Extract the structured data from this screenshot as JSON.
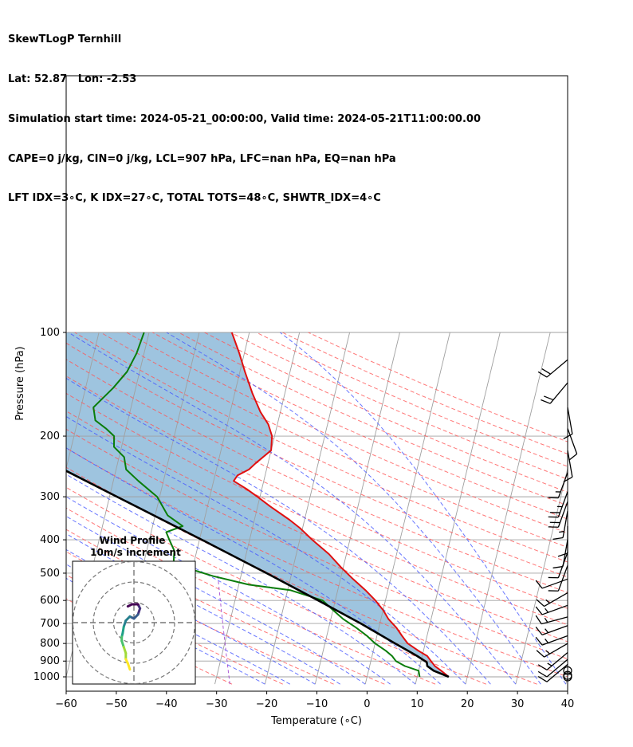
{
  "header": {
    "line1": "SkewTLogP Ternhill",
    "line2": "Lat: 52.87   Lon: -2.53",
    "line3": "Simulation start time: 2024-05-21_00:00:00, Valid time: 2024-05-21T11:00:00.00",
    "line4": "CAPE=0 j/kg, CIN=0 j/kg, LCL=907 hPa, LFC=nan hPa, EQ=nan hPa",
    "line5": "LFT IDX=3∘C, K IDX=27∘C, TOTAL TOTS=48∘C, SHWTR_IDX=4∘C"
  },
  "chart_data": {
    "type": "skew-t",
    "xlabel": "Temperature (∘C)",
    "ylabel": "Pressure (hPa)",
    "xlim": [
      -60,
      40
    ],
    "ylim": [
      1050,
      100
    ],
    "y_scale": "log",
    "x_ticks": [
      -60,
      -50,
      -40,
      -30,
      -20,
      -10,
      0,
      10,
      20,
      30,
      40
    ],
    "y_ticks": [
      100,
      200,
      300,
      400,
      500,
      600,
      700,
      800,
      900,
      1000
    ],
    "grid": true,
    "colors": {
      "temperature": "#e01010",
      "dewpoint": "#0a7d0a",
      "parcel": "#000000",
      "cape_fill": "#7eb0d4",
      "dry_adiabats": "#ff5555",
      "moist_adiabats": "#4455ff",
      "mixing_ratio": "#9933cc",
      "isotherms": "#a0a0a0"
    },
    "temperature": {
      "pressure": [
        1000,
        960,
        930,
        900,
        870,
        840,
        800,
        760,
        720,
        680,
        640,
        600,
        560,
        520,
        480,
        440,
        400,
        370,
        350,
        320,
        300,
        285,
        270,
        260,
        250,
        240,
        220,
        200,
        185,
        170,
        150,
        130,
        115,
        100
      ],
      "temp": [
        16.3,
        14.5,
        13.0,
        12.0,
        11.0,
        9.0,
        6.5,
        5.0,
        3.5,
        1.5,
        0.0,
        -2.0,
        -4.5,
        -7.5,
        -10.5,
        -13.5,
        -17.5,
        -20.5,
        -23.0,
        -27.5,
        -30.5,
        -33.0,
        -36.0,
        -35.5,
        -33.5,
        -32.5,
        -30.0,
        -30.5,
        -31.8,
        -34.0,
        -36.5,
        -39.0,
        -41.0,
        -43.5
      ]
    },
    "dewpoint": {
      "pressure": [
        1000,
        960,
        930,
        900,
        870,
        840,
        800,
        760,
        720,
        680,
        640,
        600,
        560,
        540,
        510,
        470,
        430,
        400,
        380,
        365,
        340,
        300,
        270,
        250,
        230,
        215,
        200,
        190,
        180,
        165,
        145,
        130,
        115,
        100
      ],
      "dewp": [
        10.5,
        10.0,
        7.0,
        5.0,
        4.0,
        2.5,
        0.0,
        -2.0,
        -4.5,
        -7.5,
        -10.0,
        -12.5,
        -19.5,
        -28.0,
        -35.5,
        -44.0,
        -44.5,
        -46.0,
        -47.0,
        -44.0,
        -47.5,
        -50.5,
        -55.0,
        -58.0,
        -59.0,
        -61.5,
        -62.0,
        -64.0,
        -66.5,
        -67.5,
        -64.5,
        -62.5,
        -61.5,
        -61.0
      ]
    },
    "parcel": {
      "pressure": [
        1000,
        960,
        930,
        907,
        870,
        800,
        700,
        600,
        500,
        400,
        300,
        250,
        200,
        150,
        100
      ],
      "temp": [
        16.3,
        13.0,
        11.5,
        11.2,
        9.0,
        4.0,
        -3.8,
        -13.4,
        -25.0,
        -39.5,
        -58.5,
        -70.5,
        -83.5,
        -95.5,
        -107.0
      ]
    },
    "wind_barbs": {
      "pressure": [
        1000,
        990,
        960,
        920,
        890,
        850,
        800,
        760,
        710,
        670,
        620,
        570,
        520,
        475,
        435,
        400,
        365,
        330,
        310,
        290,
        255,
        220,
        190,
        165,
        140,
        120
      ],
      "speed_kt": [
        0,
        0,
        0,
        12,
        13,
        15,
        17,
        17,
        15,
        17,
        15,
        15,
        10,
        10,
        10,
        10,
        10,
        15,
        20,
        25,
        15,
        10,
        10,
        10,
        20,
        20
      ],
      "direction_deg": [
        0,
        0,
        0,
        230,
        230,
        230,
        240,
        250,
        250,
        255,
        250,
        240,
        250,
        200,
        200,
        190,
        180,
        190,
        200,
        200,
        200,
        170,
        160,
        170,
        220,
        230
      ]
    },
    "hodograph": {
      "title": "Wind Profile",
      "subtitle": "10m/s increment",
      "u": [
        -3,
        -1,
        2,
        2.5,
        3,
        2,
        0,
        -2,
        -4,
        -5,
        -5.5,
        -6,
        -6,
        -5,
        -4,
        -4,
        -3,
        -2
      ],
      "v": [
        -8,
        -9,
        -9,
        -8,
        -7,
        -4,
        -2,
        -3,
        -1,
        2,
        5,
        7,
        9,
        12,
        15,
        18,
        20,
        23
      ],
      "rings": [
        10,
        20,
        30
      ]
    }
  }
}
